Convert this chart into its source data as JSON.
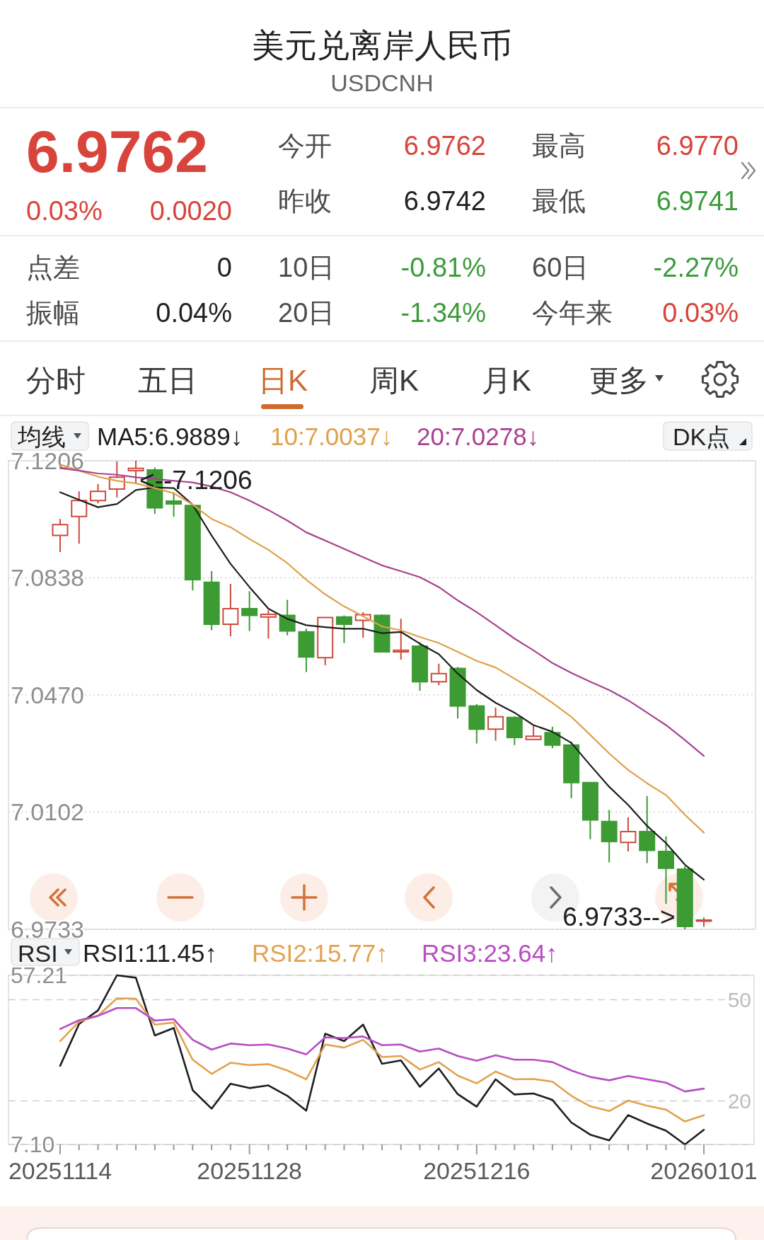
{
  "chart_data": [
    {
      "type": "other",
      "title": "美元兑离岸人民币",
      "subtitle": "USDCNH",
      "annotations": [
        "6.9762",
        "0.03%",
        "0.0020",
        "今开",
        "6.9762",
        "最高",
        "6.9770",
        "昨收",
        "6.9742",
        "最低",
        "6.9741",
        "点差",
        "0",
        "10日",
        "-0.81%",
        "60日",
        "-2.27%",
        "振幅",
        "0.04%",
        "20日",
        "-1.34%",
        "今年来",
        "0.03%",
        "分时",
        "五日",
        "日K",
        "周K",
        "月K",
        "更多"
      ]
    },
    {
      "type": "candlestick",
      "legend": "top",
      "legend_title": "均线",
      "tick_labels": "y",
      "grid": "y",
      "annotations": [
        "DK点",
        "<--7.1206",
        "6.9733-->"
      ],
      "categories": [
        null,
        null,
        null,
        null,
        null,
        null,
        null,
        null,
        null,
        null,
        null,
        null,
        null,
        null,
        null,
        null,
        null,
        null,
        null,
        null,
        null,
        null,
        null,
        null,
        null,
        null,
        null,
        null,
        null,
        null,
        null,
        null,
        null,
        null,
        null
      ],
      "ohlc": [
        [
          7.0971,
          7.1023,
          7.0919,
          7.1005
        ],
        [
          7.1031,
          7.111,
          7.0945,
          7.1081
        ],
        [
          7.1081,
          7.1133,
          7.1072,
          7.111
        ],
        [
          7.1117,
          7.1204,
          7.1091,
          7.1154
        ],
        [
          7.1175,
          7.1206,
          7.1133,
          7.1182
        ],
        [
          7.1177,
          7.1185,
          7.1039,
          7.1058
        ],
        [
          7.1079,
          7.1107,
          7.103,
          7.107
        ],
        [
          7.1065,
          7.1068,
          7.0798,
          7.0832
        ],
        [
          7.0824,
          7.0859,
          7.0673,
          7.0692
        ],
        [
          7.0692,
          7.0819,
          7.0654,
          7.0741
        ],
        [
          7.0741,
          7.0796,
          7.0671,
          7.072
        ],
        [
          7.0715,
          7.0736,
          7.0647,
          7.0723
        ],
        [
          7.072,
          7.0769,
          7.0657,
          7.0671
        ],
        [
          7.0668,
          7.0678,
          7.0542,
          7.0589
        ],
        [
          7.0587,
          7.0715,
          7.0563,
          7.0713
        ],
        [
          7.0715,
          7.072,
          7.0633,
          7.0692
        ],
        [
          7.0704,
          7.073,
          7.065,
          7.0722
        ],
        [
          7.072,
          7.0723,
          7.0604,
          7.0605
        ],
        [
          7.0605,
          7.0709,
          7.0581,
          7.061
        ],
        [
          7.0623,
          7.0636,
          7.0483,
          7.0511
        ],
        [
          7.0511,
          7.0568,
          7.05,
          7.0537
        ],
        [
          7.0553,
          7.0558,
          7.0396,
          7.0435
        ],
        [
          7.0435,
          7.0441,
          7.0317,
          7.0362
        ],
        [
          7.0362,
          7.043,
          7.0326,
          7.0401
        ],
        [
          7.0399,
          7.0403,
          7.0312,
          7.0336
        ],
        [
          7.033,
          7.0372,
          7.0328,
          7.034
        ],
        [
          7.0351,
          7.037,
          7.0302,
          7.0312
        ],
        [
          7.0312,
          7.0323,
          7.0145,
          7.0194
        ],
        [
          7.0194,
          7.0194,
          7.0016,
          7.0077
        ],
        [
          7.0072,
          7.0108,
          6.9943,
          7.0009
        ],
        [
          7.0006,
          7.0085,
          6.9978,
          7.004
        ],
        [
          7.004,
          7.0152,
          6.9941,
          6.9981
        ],
        [
          6.9978,
          7.0025,
          6.9813,
          6.9925
        ],
        [
          6.9922,
          6.9931,
          6.9733,
          6.9742
        ],
        [
          6.9762,
          6.977,
          6.9741,
          6.9762
        ]
      ],
      "colors": [
        "#cd4a3d",
        "#cd4a3d",
        "#cd4a3d",
        "#cd4a3d",
        "#cd4a3d",
        "#3d9b34",
        "#3d9b34",
        "#3d9b34",
        "#3d9b34",
        "#cd4a3d",
        "#3d9b34",
        "#cd4a3d",
        "#3d9b34",
        "#3d9b34",
        "#cd4a3d",
        "#3d9b34",
        "#cd4a3d",
        "#3d9b34",
        "#cd4a3d",
        "#3d9b34",
        "#cd4a3d",
        "#3d9b34",
        "#3d9b34",
        "#cd4a3d",
        "#3d9b34",
        "#cd4a3d",
        "#3d9b34",
        "#3d9b34",
        "#3d9b34",
        "#3d9b34",
        "#cd4a3d",
        "#3d9b34",
        "#3d9b34",
        "#3d9b34",
        "#cd4a3d"
      ],
      "series": [
        {
          "type": "line",
          "name": "MA5:6.9889↓",
          "color": "#1e1e1e",
          "values": [
            7.1107,
            7.1083,
            7.106,
            7.107,
            7.1114,
            7.1122,
            7.112,
            7.1068,
            7.0971,
            7.0882,
            7.0809,
            7.0741,
            7.0709,
            7.0689,
            7.0683,
            7.0678,
            7.0678,
            7.0664,
            7.0668,
            7.0631,
            7.0598,
            7.0537,
            7.0485,
            7.0445,
            7.0414,
            7.0375,
            7.0354,
            7.0319,
            7.0249,
            7.0181,
            7.0124,
            7.0058,
            7.0004,
            6.9936,
            6.9889
          ]
        },
        {
          "type": "line",
          "name": "10:7.0037↓",
          "color": "#e0a04c",
          "values": [
            7.1194,
            7.1175,
            7.1156,
            7.1143,
            7.1135,
            7.112,
            7.1104,
            7.1068,
            7.1023,
            7.0997,
            7.096,
            7.0926,
            7.0884,
            7.0832,
            7.0786,
            7.0748,
            7.0717,
            7.0685,
            7.0673,
            7.0652,
            7.0633,
            7.0605,
            7.0577,
            7.0556,
            7.0521,
            7.0485,
            7.0445,
            7.0401,
            7.0344,
            7.0286,
            7.0234,
            7.0192,
            7.0155,
            7.0093,
            7.0037
          ]
        },
        {
          "type": "line",
          "name": "20:7.0278↓",
          "color": "#a8428f",
          "values": [
            7.1183,
            7.1175,
            7.1166,
            7.1162,
            7.1154,
            7.1149,
            7.1143,
            7.1138,
            7.1125,
            7.1107,
            7.1081,
            7.1051,
            7.1018,
            7.0981,
            7.0955,
            7.0929,
            7.0903,
            7.0877,
            7.0859,
            7.084,
            7.0809,
            7.0767,
            7.073,
            7.0689,
            7.0647,
            7.061,
            7.057,
            7.0539,
            7.0511,
            7.0485,
            7.0453,
            7.0414,
            7.0375,
            7.0328,
            7.0278
          ]
        }
      ],
      "ylim": [
        6.9733,
        7.1206
      ],
      "yticks": [
        7.1206,
        7.0838,
        {
          "value": 7.047,
          "label": "7.0470"
        },
        7.0102,
        6.9733
      ]
    },
    {
      "type": "line",
      "legend": "top",
      "legend_title": "RSI",
      "grid": "y",
      "categories": [
        "20251114",
        null,
        null,
        null,
        null,
        null,
        null,
        null,
        null,
        null,
        "20251128",
        null,
        null,
        null,
        null,
        null,
        null,
        null,
        null,
        null,
        null,
        null,
        "20251216",
        null,
        null,
        null,
        null,
        null,
        null,
        null,
        null,
        null,
        null,
        null,
        "20260101"
      ],
      "series": [
        {
          "name": "RSI1:11.45↑",
          "color": "#1e1e1e",
          "values": [
            30.4,
            42.8,
            46.8,
            57.21,
            56.5,
            39.4,
            41.6,
            23.2,
            17.7,
            25.1,
            23.8,
            24.6,
            21.5,
            17.1,
            39.9,
            37.7,
            42.6,
            31.0,
            32.0,
            24.2,
            29.6,
            22.0,
            18.3,
            26.4,
            21.9,
            22.2,
            20.3,
            13.6,
            10.0,
            8.3,
            15.8,
            13.3,
            11.2,
            7.1,
            11.45
          ]
        },
        {
          "name": "RSI2:15.77↑",
          "color": "#e2a24e",
          "values": [
            37.7,
            43.5,
            45.2,
            50.4,
            50.3,
            42.6,
            43.2,
            32.2,
            28.0,
            31.3,
            30.6,
            30.9,
            29.0,
            26.4,
            36.7,
            35.8,
            38.1,
            33.0,
            33.3,
            29.3,
            31.5,
            27.5,
            25.2,
            28.7,
            26.4,
            26.5,
            25.7,
            21.5,
            18.4,
            17.0,
            20.1,
            18.6,
            17.4,
            13.9,
            15.77
          ]
        },
        {
          "name": "RSI3:23.64↑",
          "color": "#b84cc4",
          "values": [
            41.3,
            43.9,
            45.2,
            47.5,
            47.5,
            43.8,
            44.2,
            38.1,
            35.2,
            37.0,
            36.5,
            36.7,
            35.5,
            33.8,
            38.8,
            38.6,
            39.1,
            36.5,
            36.7,
            34.6,
            35.5,
            33.3,
            31.9,
            33.5,
            32.2,
            32.2,
            31.5,
            29.0,
            27.1,
            26.1,
            27.4,
            26.4,
            25.4,
            22.8,
            23.64
          ]
        }
      ],
      "ylim": [
        7.1,
        57.21
      ],
      "yticks": [
        57.21,
        {
          "value": 7.1,
          "label": "7.10"
        }
      ],
      "y2lim": [
        7.1,
        57.21
      ],
      "y2ticks": [
        50,
        20
      ]
    }
  ]
}
